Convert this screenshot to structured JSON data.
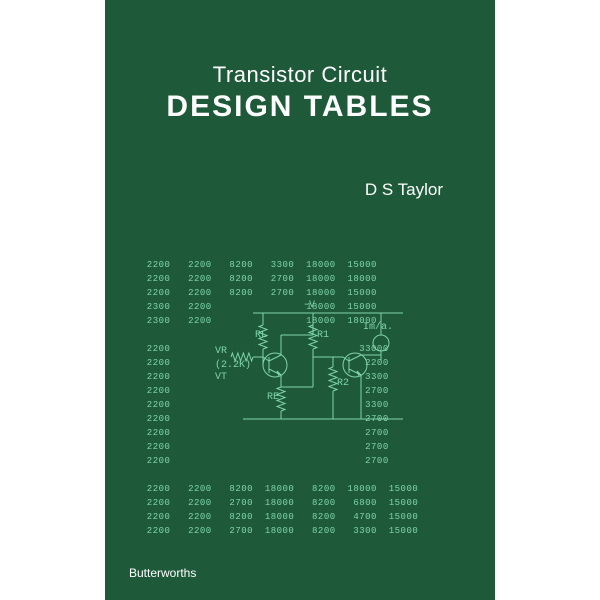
{
  "cover": {
    "background_color": "#1e5a3a",
    "text_color": "#ffffff",
    "accent_color": "#7fd4a8",
    "title_line1": "Transistor Circuit",
    "title_line2": "DESIGN  TABLES",
    "author": "D S Taylor",
    "publisher": "Butterworths"
  },
  "tables": {
    "font_color": "#7fd4a8",
    "upper_block": [
      "2200   2200   8200   3300  18000  15000",
      "2200   2200   8200   2700  18000  18000",
      "2200   2200   8200   2700  18000  15000",
      "2300   2200                18000  15000",
      "2300   2200                18000  18000"
    ],
    "left_block": [
      "2200",
      "2200",
      "2200",
      "2200",
      "2200",
      "2200",
      "2200",
      "2200",
      "2200"
    ],
    "right_block": [
      "33000",
      " 2200",
      " 3300",
      " 2700",
      " 3300",
      " 2700",
      " 2700",
      " 2700",
      " 2700"
    ],
    "lower_block": [
      "2200   2200   8200  18000   8200  18000  15000",
      "2200   2200   2700  18000   8200   6800  15000",
      "2200   2200   8200  18000   8200   4700  15000",
      "2200   2200   2700  18000   8200   3300  15000"
    ]
  },
  "circuit": {
    "line_color": "#7fd4a8",
    "labels": {
      "minus_v": "-V",
      "rl": "RL",
      "r1": "R1",
      "im": "Im/a.",
      "vr": "VR",
      "val": "(2.2K)",
      "vt": "VT",
      "re": "RE",
      "r2": "R2"
    }
  }
}
